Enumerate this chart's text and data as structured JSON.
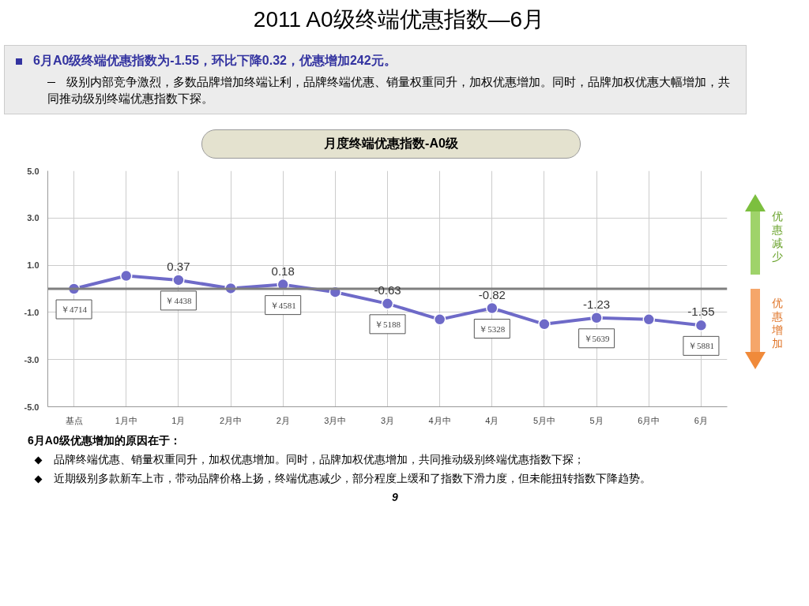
{
  "chart_data": {
    "type": "line",
    "title": "2011 A0级终端优惠指数—6月",
    "subtitle": "月度终端优惠指数-A0级",
    "categories": [
      "基点",
      "1月中",
      "1月",
      "2月中",
      "2月",
      "3月中",
      "3月",
      "4月中",
      "4月",
      "5月中",
      "5月",
      "6月中",
      "6月"
    ],
    "series": [
      {
        "color": "#6e6ac8",
        "values": [
          0,
          0.55,
          0.37,
          0.02,
          0.18,
          -0.14,
          -0.63,
          -1.3,
          -0.82,
          -1.5,
          -1.23,
          -1.3,
          -1.55
        ],
        "value_labels": [
          null,
          null,
          "0.37",
          null,
          "0.18",
          null,
          "-0.63",
          null,
          "-0.82",
          null,
          "-1.23",
          null,
          "-1.55"
        ]
      }
    ],
    "ylim": [
      -5,
      5
    ],
    "yticks": [
      {
        "value": 5,
        "label": "5.0"
      },
      {
        "value": 3,
        "label": "3.0"
      },
      {
        "value": 1,
        "label": "1.0"
      },
      {
        "value": -1,
        "label": "-1.0"
      },
      {
        "value": -3,
        "label": "-3.0"
      },
      {
        "value": -5,
        "label": "-5.0"
      }
    ],
    "grid": true,
    "marker": "circle",
    "line_style": "solid",
    "ref_lines": [
      {
        "axis": "y",
        "value": 0,
        "color": "#7f7f7f"
      }
    ],
    "annotations": [
      "6月A0级终端优惠指数为-1.55，环比下降0.32，优惠增加242元。",
      "级别内部竞争激烈，多数品牌增加终端让利，品牌终端优惠、销量权重同升，加权优惠增加。同时，品牌加权优惠大幅增加，共同推动级别终端优惠指数下探。",
      "6月A0级优惠增加的原因在于：",
      "品牌终端优惠、销量权重同升，加权优惠增加。同时，品牌加权优惠增加，共同推动级别终端优惠指数下探；",
      "近期级别多款新车上市，带动品牌价格上扬，终端优惠减少，部分程度上缓和了指数下滑力度，但未能扭转指数下降趋势。",
      "优惠减少",
      "优惠增加",
      "9",
      {
        "text": "￥4714",
        "x": "基点",
        "y": 0
      },
      {
        "text": "￥4438",
        "x": "1月",
        "y": 0.37
      },
      {
        "text": "￥4581",
        "x": "2月",
        "y": 0.18
      },
      {
        "text": "￥5188",
        "x": "3月",
        "y": -0.63
      },
      {
        "text": "￥5328",
        "x": "4月",
        "y": -0.82
      },
      {
        "text": "￥5639",
        "x": "5月",
        "y": -1.23
      },
      {
        "text": "￥5881",
        "x": "6月",
        "y": -1.55
      }
    ]
  }
}
